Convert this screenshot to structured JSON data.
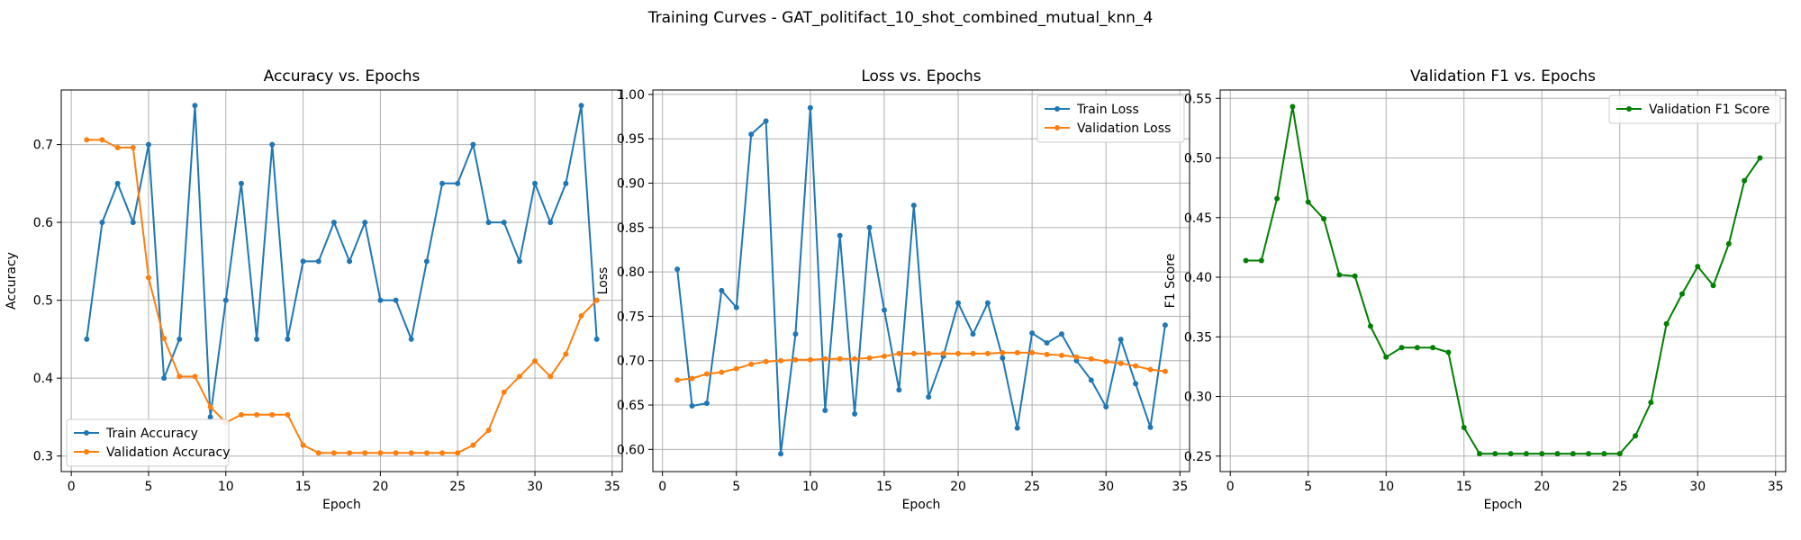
{
  "figure": {
    "suptitle": "Training Curves - GAT_politifact_10_shot_combined_mutual_knn_4"
  },
  "colors": {
    "blue": "#1f77b4",
    "orange": "#ff7f0e",
    "green": "#008000",
    "grid": "#b0b0b0"
  },
  "chart_data": [
    {
      "type": "line",
      "title": "Accuracy vs. Epochs",
      "xlabel": "Epoch",
      "ylabel": "Accuracy",
      "xlim": [
        -0.65,
        35.65
      ],
      "ylim": [
        0.28,
        0.77
      ],
      "xticks": [
        0,
        5,
        10,
        15,
        20,
        25,
        30,
        35
      ],
      "yticks": [
        0.3,
        0.4,
        0.5,
        0.6,
        0.7
      ],
      "ytick_labels": [
        "0.3",
        "0.4",
        "0.5",
        "0.6",
        "0.7"
      ],
      "grid": true,
      "legend_loc": "lower-left",
      "x": [
        1,
        2,
        3,
        4,
        5,
        6,
        7,
        8,
        9,
        10,
        11,
        12,
        13,
        14,
        15,
        16,
        17,
        18,
        19,
        20,
        21,
        22,
        23,
        24,
        25,
        26,
        27,
        28,
        29,
        30,
        31,
        32,
        33,
        34
      ],
      "series": [
        {
          "name": "Train Accuracy",
          "color": "#1f77b4",
          "values": [
            0.45,
            0.6,
            0.65,
            0.6,
            0.7,
            0.4,
            0.45,
            0.75,
            0.35,
            0.5,
            0.65,
            0.45,
            0.7,
            0.45,
            0.55,
            0.55,
            0.6,
            0.55,
            0.6,
            0.5,
            0.5,
            0.45,
            0.55,
            0.65,
            0.65,
            0.7,
            0.6,
            0.6,
            0.55,
            0.65,
            0.6,
            0.65,
            0.75,
            0.45
          ]
        },
        {
          "name": "Validation Accuracy",
          "color": "#ff7f0e",
          "values": [
            0.706,
            0.706,
            0.696,
            0.696,
            0.529,
            0.451,
            0.402,
            0.402,
            0.363,
            0.343,
            0.353,
            0.353,
            0.353,
            0.353,
            0.314,
            0.304,
            0.304,
            0.304,
            0.304,
            0.304,
            0.304,
            0.304,
            0.304,
            0.304,
            0.304,
            0.314,
            0.333,
            0.382,
            0.402,
            0.422,
            0.402,
            0.431,
            0.48,
            0.5
          ]
        }
      ]
    },
    {
      "type": "line",
      "title": "Loss vs. Epochs",
      "xlabel": "Epoch",
      "ylabel": "Loss",
      "xlim": [
        -0.65,
        35.65
      ],
      "ylim": [
        0.575,
        1.005
      ],
      "xticks": [
        0,
        5,
        10,
        15,
        20,
        25,
        30,
        35
      ],
      "yticks": [
        0.6,
        0.65,
        0.7,
        0.75,
        0.8,
        0.85,
        0.9,
        0.95,
        1.0
      ],
      "ytick_labels": [
        "0.60",
        "0.65",
        "0.70",
        "0.75",
        "0.80",
        "0.85",
        "0.90",
        "0.95",
        "1.00"
      ],
      "grid": true,
      "legend_loc": "upper-right",
      "x": [
        1,
        2,
        3,
        4,
        5,
        6,
        7,
        8,
        9,
        10,
        11,
        12,
        13,
        14,
        15,
        16,
        17,
        18,
        19,
        20,
        21,
        22,
        23,
        24,
        25,
        26,
        27,
        28,
        29,
        30,
        31,
        32,
        33,
        34
      ],
      "series": [
        {
          "name": "Train Loss",
          "color": "#1f77b4",
          "values": [
            0.803,
            0.649,
            0.652,
            0.779,
            0.76,
            0.955,
            0.97,
            0.595,
            0.73,
            0.985,
            0.644,
            0.841,
            0.64,
            0.85,
            0.757,
            0.667,
            0.875,
            0.659,
            0.705,
            0.765,
            0.73,
            0.765,
            0.703,
            0.624,
            0.731,
            0.72,
            0.73,
            0.7,
            0.678,
            0.648,
            0.724,
            0.674,
            0.625,
            0.74
          ]
        },
        {
          "name": "Validation Loss",
          "color": "#ff7f0e",
          "values": [
            0.678,
            0.68,
            0.685,
            0.687,
            0.691,
            0.696,
            0.699,
            0.7,
            0.701,
            0.701,
            0.702,
            0.702,
            0.702,
            0.703,
            0.705,
            0.708,
            0.708,
            0.708,
            0.708,
            0.708,
            0.708,
            0.708,
            0.709,
            0.709,
            0.709,
            0.707,
            0.706,
            0.704,
            0.702,
            0.699,
            0.697,
            0.694,
            0.69,
            0.688
          ]
        }
      ]
    },
    {
      "type": "line",
      "title": "Validation F1 vs. Epochs",
      "xlabel": "Epoch",
      "ylabel": "F1 Score",
      "xlim": [
        -0.65,
        35.65
      ],
      "ylim": [
        0.237,
        0.557
      ],
      "xticks": [
        0,
        5,
        10,
        15,
        20,
        25,
        30,
        35
      ],
      "yticks": [
        0.25,
        0.3,
        0.35,
        0.4,
        0.45,
        0.5,
        0.55
      ],
      "ytick_labels": [
        "0.25",
        "0.30",
        "0.35",
        "0.40",
        "0.45",
        "0.50",
        "0.55"
      ],
      "grid": true,
      "legend_loc": "upper-right",
      "x": [
        1,
        2,
        3,
        4,
        5,
        6,
        7,
        8,
        9,
        10,
        11,
        12,
        13,
        14,
        15,
        16,
        17,
        18,
        19,
        20,
        21,
        22,
        23,
        24,
        25,
        26,
        27,
        28,
        29,
        30,
        31,
        32,
        33,
        34
      ],
      "series": [
        {
          "name": "Validation F1 Score",
          "color": "#008000",
          "values": [
            0.414,
            0.414,
            0.466,
            0.543,
            0.463,
            0.449,
            0.402,
            0.401,
            0.359,
            0.333,
            0.341,
            0.341,
            0.341,
            0.337,
            0.274,
            0.252,
            0.252,
            0.252,
            0.252,
            0.252,
            0.252,
            0.252,
            0.252,
            0.252,
            0.252,
            0.267,
            0.295,
            0.361,
            0.386,
            0.409,
            0.393,
            0.428,
            0.481,
            0.5
          ]
        }
      ]
    }
  ]
}
